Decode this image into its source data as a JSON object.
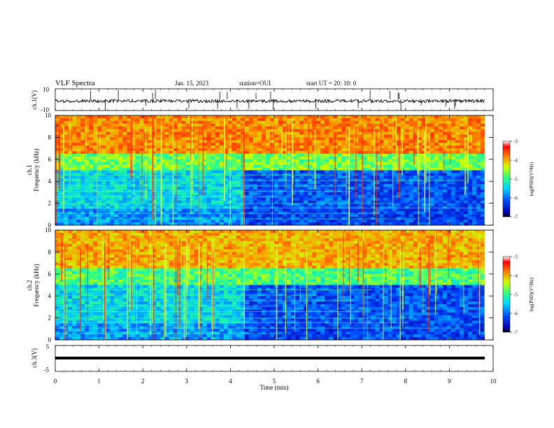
{
  "header": {
    "title": "VLF Spectra",
    "date": "Jan. 15, 2023",
    "station": "station=OUI",
    "start": "start  UT  =  20: 10: 0"
  },
  "chart_data": [
    {
      "type": "line",
      "name": "ch1-waveform",
      "ylabel": "ch.1(V)",
      "ylim": [
        -10,
        10
      ],
      "yticks": [
        "10",
        "-10"
      ],
      "xlim": [
        0,
        10
      ]
    },
    {
      "type": "heatmap",
      "name": "ch1-spectrogram",
      "ylabel_top": "ch.1",
      "ylabel": "Frequency (kHz)",
      "ylim": [
        0,
        10
      ],
      "yticks": [
        "0",
        "2",
        "4",
        "6",
        "8",
        "10"
      ],
      "xlim": [
        0,
        10
      ],
      "colorbar": {
        "label": "log(PSD)(V²/Hz)",
        "range": [
          -7,
          -3
        ],
        "ticks": [
          "-3",
          "-4",
          "-5",
          "-6",
          "-7"
        ]
      }
    },
    {
      "type": "heatmap",
      "name": "ch2-spectrogram",
      "ylabel_top": "ch.2",
      "ylabel": "Frequency (kHz)",
      "ylim": [
        0,
        10
      ],
      "yticks": [
        "0",
        "2",
        "4",
        "6",
        "8",
        "10"
      ],
      "xlim": [
        0,
        10
      ],
      "colorbar": {
        "label": "log(PSD)(V²/Hz)",
        "range": [
          -7,
          -3
        ],
        "ticks": [
          "-3",
          "-4",
          "-5",
          "-6",
          "-7"
        ]
      }
    },
    {
      "type": "line",
      "name": "ch3-waveform",
      "ylabel": "ch.3(V)",
      "ylim": [
        -5,
        5
      ],
      "yticks": [
        "5",
        "-5"
      ],
      "xlim": [
        0,
        10
      ],
      "xlabel": "Time (min)",
      "xticks": [
        "0",
        "1",
        "2",
        "3",
        "4",
        "5",
        "6",
        "7",
        "8",
        "9",
        "10"
      ]
    }
  ]
}
